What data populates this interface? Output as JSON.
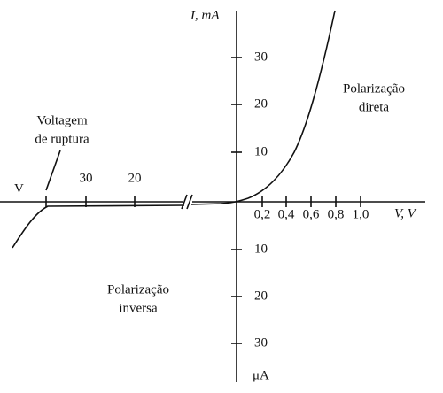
{
  "axes": {
    "y_label": "I, mA",
    "y_lower_unit": "μA",
    "x_label": "V, V",
    "x_left_label": "V",
    "y_upper_ticks": [
      "30",
      "20",
      "10"
    ],
    "y_lower_ticks": [
      "10",
      "20",
      "30"
    ],
    "x_right_ticks": [
      "0,2",
      "0,4",
      "0,6",
      "0,8",
      "1,0"
    ],
    "x_left_ticks": [
      "30",
      "20"
    ]
  },
  "annotations": {
    "forward": [
      "Polarização",
      "direta"
    ],
    "reverse": [
      "Polarização",
      "inversa"
    ],
    "breakdown": [
      "Voltagem",
      "de ruptura"
    ]
  }
}
